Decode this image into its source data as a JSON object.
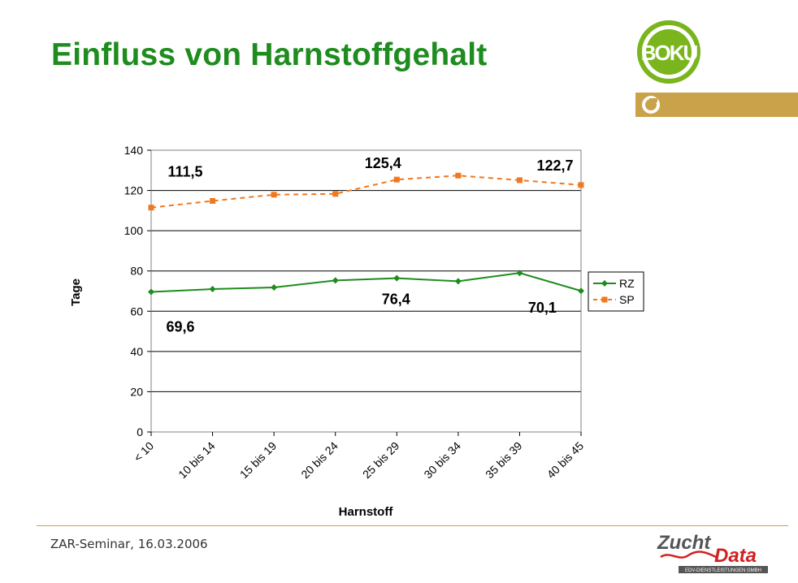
{
  "slide": {
    "title": "Einfluss von Harnstoffgehalt",
    "footer": "ZAR-Seminar, 16.03.2006",
    "logos": {
      "top_right": {
        "text": "BOKU",
        "color": "#7ab51d"
      },
      "bottom_right": {
        "text_1": "Zucht",
        "text_2": "Data",
        "subtext": "EDV-DIENSTLEISTUNGEN GMBH"
      }
    },
    "colors": {
      "title": "#1e8c1e",
      "accent_bar": "#c9a24a",
      "rz": "#1e8c1e",
      "sp": "#f07820"
    }
  },
  "chart_data": {
    "type": "line",
    "categories": [
      "< 10",
      "10 bis 14",
      "15 bis 19",
      "20 bis 24",
      "25 bis 29",
      "30 bis 34",
      "35 bis 39",
      "40 bis 45"
    ],
    "series": [
      {
        "name": "RZ",
        "values": [
          69.6,
          71.0,
          71.8,
          75.3,
          76.4,
          74.9,
          79.0,
          70.1
        ],
        "color": "#1e8c1e",
        "style": "solid",
        "marker": "diamond"
      },
      {
        "name": "SP",
        "values": [
          111.5,
          114.8,
          117.9,
          118.3,
          125.4,
          127.4,
          125.1,
          122.7
        ],
        "color": "#f07820",
        "style": "dashed",
        "marker": "square"
      }
    ],
    "annotations": [
      "111,5",
      "125,4",
      "122,7",
      "69,6",
      "76,4",
      "70,1"
    ],
    "xlabel": "Harnstoff",
    "ylabel": "Tage",
    "ylim": [
      0,
      140
    ],
    "yticks": [
      0,
      20,
      40,
      60,
      80,
      100,
      120,
      140
    ],
    "grid": true,
    "legend": "right"
  }
}
